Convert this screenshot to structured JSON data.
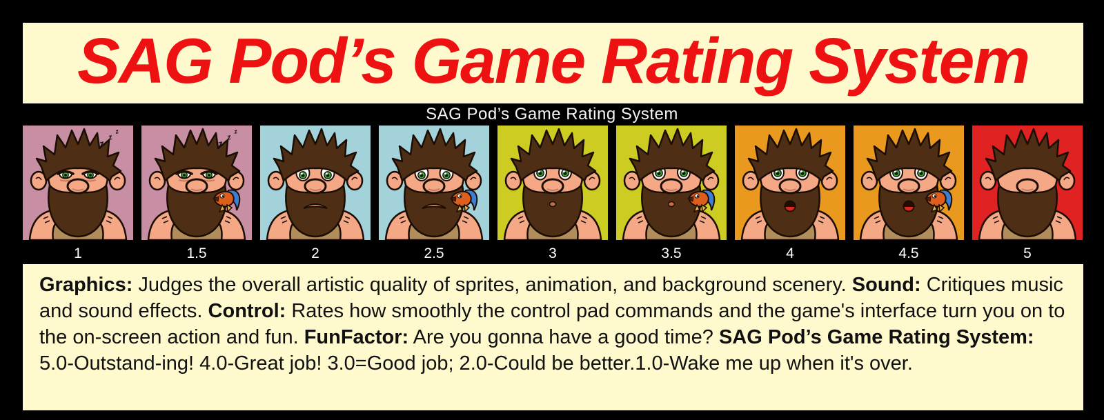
{
  "page": {
    "background": "#000000"
  },
  "header": {
    "title": "SAG Pod’s Game Rating System",
    "bg": "#FFFACD",
    "color": "#EE1111"
  },
  "subheader": {
    "title": "SAG Pod’s Game Rating System",
    "bg": "#000000",
    "color": "#F5F5F5"
  },
  "rating": {
    "label_color": "#FFFFFF",
    "tiles": [
      {
        "value": "1",
        "bg": "#C78EA4",
        "mood": "sleepy",
        "fish": false
      },
      {
        "value": "1.5",
        "bg": "#C78EA4",
        "mood": "sleepy",
        "fish": true
      },
      {
        "value": "2",
        "bg": "#A3D2DB",
        "mood": "sad",
        "fish": false
      },
      {
        "value": "2.5",
        "bg": "#A3D2DB",
        "mood": "sad",
        "fish": true
      },
      {
        "value": "3",
        "bg": "#CCCC22",
        "mood": "neutral",
        "fish": false
      },
      {
        "value": "3.5",
        "bg": "#CCCC22",
        "mood": "neutral",
        "fish": true
      },
      {
        "value": "4",
        "bg": "#E8991E",
        "mood": "happy",
        "fish": false
      },
      {
        "value": "4.5",
        "bg": "#E8991E",
        "mood": "happy",
        "fish": true
      },
      {
        "value": "5",
        "bg": "#E02222",
        "mood": "ecstatic",
        "fish": false
      }
    ]
  },
  "description": {
    "bg": "#FFFACD",
    "segments": [
      {
        "bold": true,
        "text": "Graphics:"
      },
      {
        "bold": false,
        "text": " Judges the overall artistic quality of sprites, animation, and background scenery. "
      },
      {
        "bold": true,
        "text": "Sound:"
      },
      {
        "bold": false,
        "text": " Critiques music and sound effects. "
      },
      {
        "bold": true,
        "text": "Control:"
      },
      {
        "bold": false,
        "text": " Rates how smoothly the control pad commands and the game's interface turn you on to the on-screen action and fun. "
      },
      {
        "bold": true,
        "text": "FunFactor:"
      },
      {
        "bold": false,
        "text": " Are you gonna have a good time? "
      },
      {
        "bold": true,
        "text": "SAG Pod’s Game Rating System:"
      },
      {
        "bold": false,
        "text": " 5.0-Outstand-ing! 4.0-Great job! 3.0=Good job; 2.0-Could be better.1.0-Wake me up when it's over."
      }
    ]
  }
}
